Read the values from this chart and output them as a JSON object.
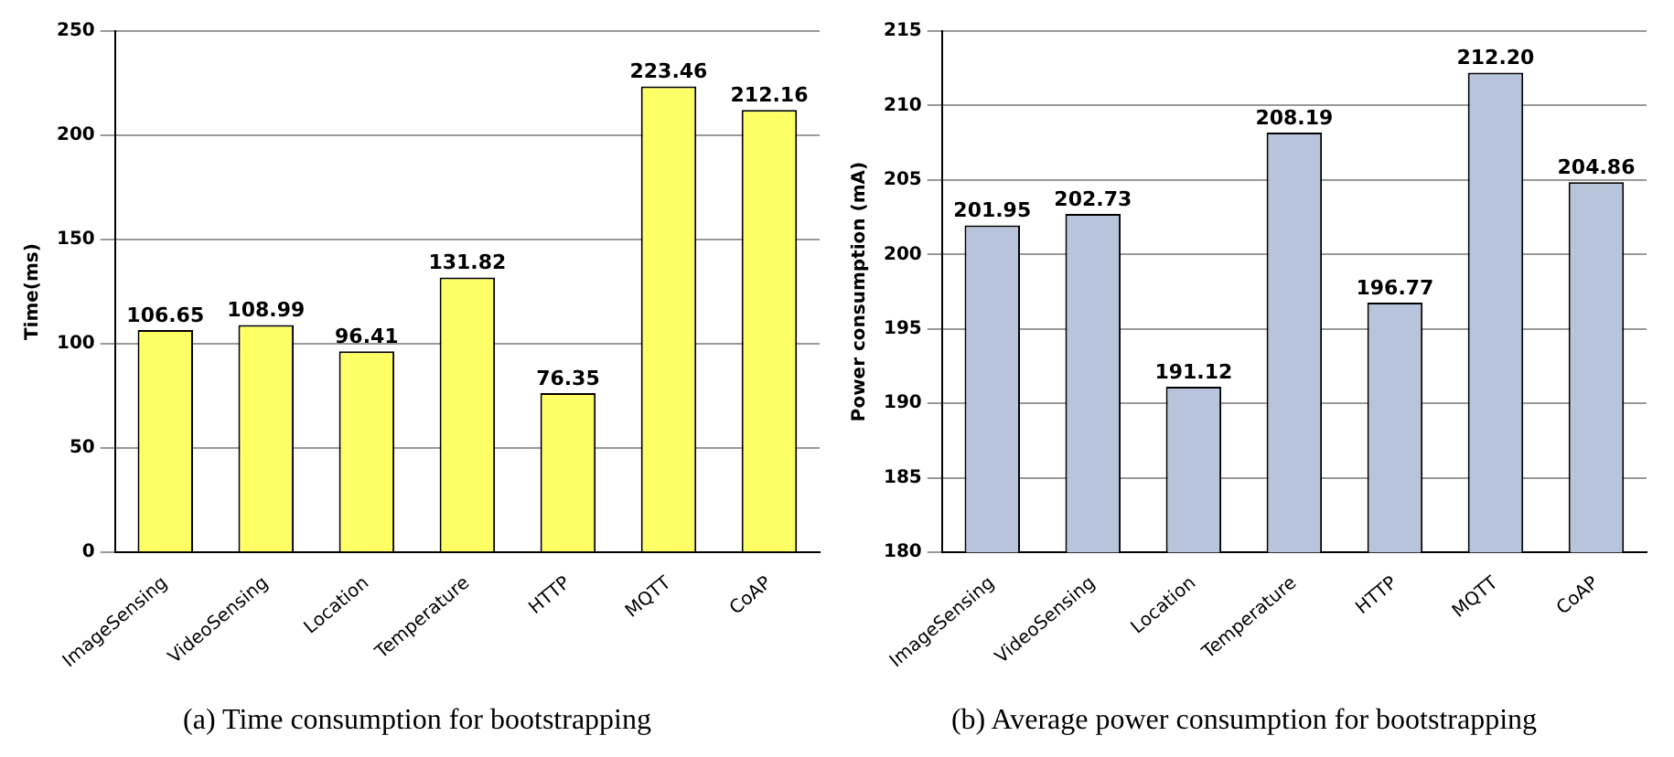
{
  "chart_data": [
    {
      "type": "bar",
      "title": "(a) Time consumption for bootstrapping",
      "ylabel": "Time(ms)",
      "categories": [
        "ImageSensing",
        "VideoSensing",
        "Location",
        "Temperature",
        "HTTP",
        "MQTT",
        "CoAP"
      ],
      "values": [
        106.65,
        108.99,
        96.41,
        131.82,
        76.35,
        223.46,
        212.16
      ],
      "color": "#ffff66",
      "ylim": [
        0,
        250
      ],
      "yticks": [
        0,
        50,
        100,
        150,
        200,
        250
      ],
      "grid": "y",
      "data_labels": true
    },
    {
      "type": "bar",
      "title": "(b) Average power consumption for bootstrapping",
      "ylabel": "Power consumption (mA)",
      "categories": [
        "ImageSensing",
        "VideoSensing",
        "Location",
        "Temperature",
        "HTTP",
        "MQTT",
        "CoAP"
      ],
      "values": [
        201.95,
        202.73,
        191.12,
        208.19,
        196.77,
        212.2,
        204.86
      ],
      "value_labels": [
        "201.95",
        "202.73",
        "191.12",
        "208.19",
        "196.77",
        "212.20",
        "204.86"
      ],
      "color": "#b8c4dc",
      "ylim": [
        180,
        215
      ],
      "yticks": [
        180,
        185,
        190,
        195,
        200,
        205,
        210,
        215
      ],
      "grid": "y"
    }
  ]
}
